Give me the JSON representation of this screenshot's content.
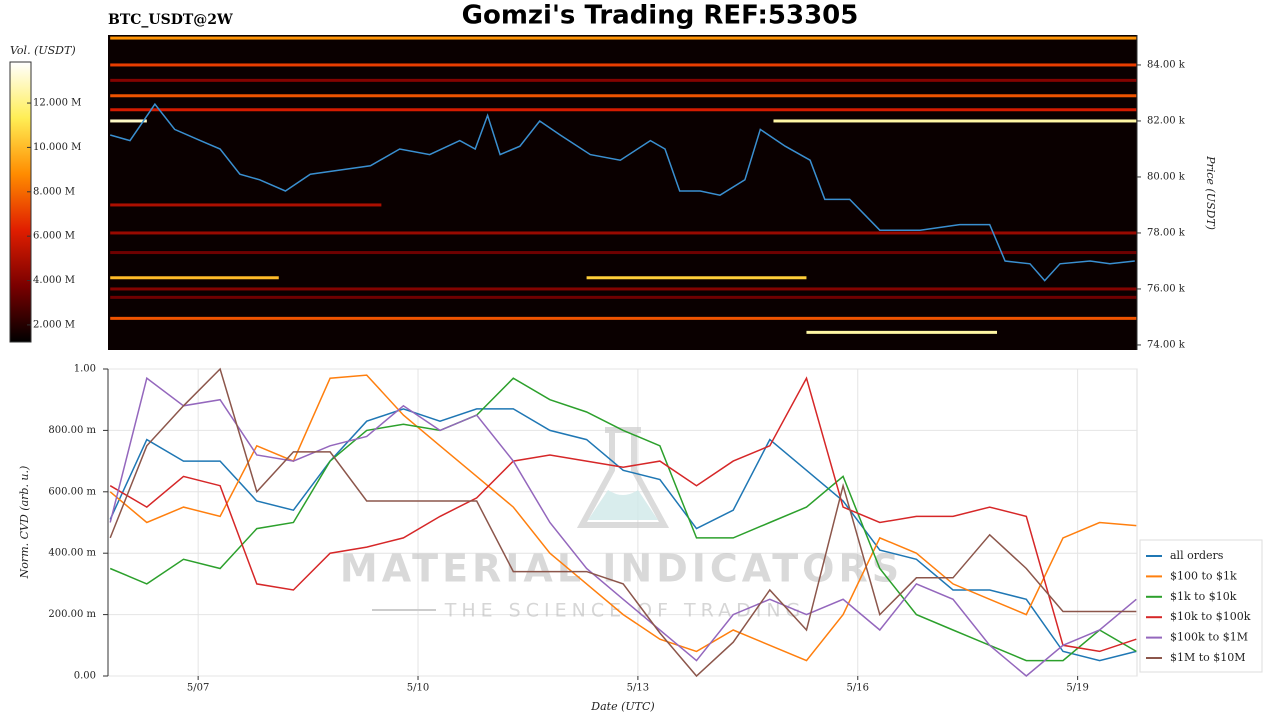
{
  "chart_data": [
    {
      "type": "heatmap",
      "title": "Gomzi's Trading REF:53305",
      "subtitle": "BTC_USDT@2W",
      "colorbar_label": "Vol. (USDT)",
      "ylabel": "Price (USDT)",
      "xlim": [
        5.77,
        19.81
      ],
      "ylim": [
        73820,
        85070
      ],
      "yticks": [
        {
          "value": 74000,
          "label": "74.00 k"
        },
        {
          "value": 76000,
          "label": "76.00 k"
        },
        {
          "value": 78000,
          "label": "78.00 k"
        },
        {
          "value": 80000,
          "label": "80.00 k"
        },
        {
          "value": 82000,
          "label": "82.00 k"
        },
        {
          "value": 84000,
          "label": "84.00 k"
        }
      ],
      "vlim": [
        1230000,
        13850000
      ],
      "vticks": [
        {
          "value": 2000000,
          "label": "2.000 M"
        },
        {
          "value": 4000000,
          "label": "4.000 M"
        },
        {
          "value": 6000000,
          "label": "6.000 M"
        },
        {
          "value": 8000000,
          "label": "8.000 M"
        },
        {
          "value": 10000000,
          "label": "10.000 M"
        },
        {
          "value": 12000000,
          "label": "12.000 M"
        }
      ],
      "colormap": [
        "#000000",
        "#7a0000",
        "#e01e00",
        "#ff8c00",
        "#ffee55",
        "#ffffff"
      ],
      "background": "#0a0000",
      "color": "#3a8fd0",
      "x": [
        5.8,
        6.07,
        6.41,
        6.68,
        7.03,
        7.3,
        7.57,
        7.84,
        8.19,
        8.53,
        8.94,
        9.35,
        9.75,
        10.16,
        10.57,
        10.78,
        10.95,
        11.12,
        11.39,
        11.66,
        11.94,
        12.35,
        12.76,
        13.17,
        13.37,
        13.57,
        13.85,
        14.12,
        14.46,
        14.67,
        15.01,
        15.35,
        15.55,
        15.89,
        16.3,
        16.85,
        17.39,
        17.8,
        18.01,
        18.35,
        18.55,
        18.76,
        19.17,
        19.44,
        19.78
      ],
      "values": [
        81500,
        81300,
        82600,
        81700,
        81300,
        81000,
        80100,
        79900,
        79500,
        80100,
        80250,
        80400,
        81000,
        80800,
        81300,
        81000,
        82200,
        80800,
        81100,
        82000,
        81500,
        80800,
        80600,
        81300,
        81000,
        79500,
        79500,
        79350,
        79900,
        81700,
        81100,
        80600,
        79200,
        79200,
        78100,
        78100,
        78300,
        78300,
        77000,
        76900,
        76300,
        76900,
        77000,
        76900,
        77000
      ],
      "levels": [
        {
          "price": 84960,
          "start": 5.8,
          "end": 19.8,
          "volume": 9000000
        },
        {
          "price": 84000,
          "start": 5.8,
          "end": 19.8,
          "volume": 7000000
        },
        {
          "price": 83450,
          "start": 5.8,
          "end": 19.8,
          "volume": 4000000
        },
        {
          "price": 82900,
          "start": 5.8,
          "end": 19.8,
          "volume": 7500000
        },
        {
          "price": 82400,
          "start": 5.8,
          "end": 19.8,
          "volume": 6000000
        },
        {
          "price": 82000,
          "start": 14.85,
          "end": 19.8,
          "volume": 12500000
        },
        {
          "price": 82000,
          "start": 5.8,
          "end": 6.3,
          "volume": 13000000
        },
        {
          "price": 79000,
          "start": 5.8,
          "end": 9.5,
          "volume": 5000000
        },
        {
          "price": 78000,
          "start": 5.8,
          "end": 19.8,
          "volume": 4500000
        },
        {
          "price": 77300,
          "start": 5.8,
          "end": 19.8,
          "volume": 3500000
        },
        {
          "price": 76400,
          "start": 5.8,
          "end": 8.1,
          "volume": 10000000
        },
        {
          "price": 76400,
          "start": 12.3,
          "end": 15.3,
          "volume": 10500000
        },
        {
          "price": 76000,
          "start": 5.8,
          "end": 19.8,
          "volume": 4000000
        },
        {
          "price": 75700,
          "start": 5.8,
          "end": 19.8,
          "volume": 3500000
        },
        {
          "price": 74950,
          "start": 5.8,
          "end": 19.8,
          "volume": 7500000
        },
        {
          "price": 74450,
          "start": 15.3,
          "end": 17.9,
          "volume": 12500000
        }
      ]
    },
    {
      "type": "line",
      "xlabel": "Date (UTC)",
      "ylabel": "Norm. CVD (arb. u.)",
      "grid": true,
      "legend": "right",
      "watermark": {
        "title": "MATERIAL INDICATORS",
        "subtitle": "THE SCIENCE OF TRADING"
      },
      "xlim": [
        5.77,
        19.81
      ],
      "ylim": [
        0,
        1
      ],
      "xticks": [
        {
          "value": 7,
          "label": "5/07"
        },
        {
          "value": 10,
          "label": "5/10"
        },
        {
          "value": 13,
          "label": "5/13"
        },
        {
          "value": 16,
          "label": "5/16"
        },
        {
          "value": 19,
          "label": "5/19"
        }
      ],
      "yticks": [
        {
          "value": 0,
          "label": "0.00"
        },
        {
          "value": 0.2,
          "label": "200.00 m"
        },
        {
          "value": 0.4,
          "label": "400.00 m"
        },
        {
          "value": 0.6,
          "label": "600.00 m"
        },
        {
          "value": 0.8,
          "label": "800.00 m"
        },
        {
          "value": 1,
          "label": "1.00"
        }
      ],
      "x": [
        5.8,
        6.3,
        6.8,
        7.3,
        7.8,
        8.3,
        8.8,
        9.3,
        9.8,
        10.3,
        10.8,
        11.3,
        11.8,
        12.3,
        12.8,
        13.3,
        13.8,
        14.3,
        14.8,
        15.3,
        15.8,
        16.3,
        16.8,
        17.3,
        17.8,
        18.3,
        18.8,
        19.3,
        19.8
      ],
      "series": [
        {
          "name": "all orders",
          "color": "#1f77b4",
          "values": [
            0.51,
            0.77,
            0.7,
            0.7,
            0.57,
            0.54,
            0.7,
            0.83,
            0.87,
            0.83,
            0.87,
            0.87,
            0.8,
            0.77,
            0.67,
            0.64,
            0.48,
            0.54,
            0.77,
            0.67,
            0.57,
            0.41,
            0.38,
            0.28,
            0.28,
            0.25,
            0.08,
            0.05,
            0.08
          ]
        },
        {
          "name": "$100 to $1k",
          "color": "#ff7f0e",
          "values": [
            0.6,
            0.5,
            0.55,
            0.52,
            0.75,
            0.7,
            0.97,
            0.98,
            0.85,
            0.75,
            0.65,
            0.55,
            0.4,
            0.3,
            0.2,
            0.12,
            0.08,
            0.15,
            0.1,
            0.05,
            0.2,
            0.45,
            0.4,
            0.3,
            0.25,
            0.2,
            0.45,
            0.5,
            0.49
          ]
        },
        {
          "name": "$1k to $10k",
          "color": "#2ca02c",
          "values": [
            0.35,
            0.3,
            0.38,
            0.35,
            0.48,
            0.5,
            0.7,
            0.8,
            0.82,
            0.8,
            0.85,
            0.97,
            0.9,
            0.86,
            0.8,
            0.75,
            0.45,
            0.45,
            0.5,
            0.55,
            0.65,
            0.35,
            0.2,
            0.15,
            0.1,
            0.05,
            0.05,
            0.15,
            0.08
          ]
        },
        {
          "name": "$10k to $100k",
          "color": "#d62728",
          "values": [
            0.62,
            0.55,
            0.65,
            0.62,
            0.3,
            0.28,
            0.4,
            0.42,
            0.45,
            0.52,
            0.58,
            0.7,
            0.72,
            0.7,
            0.68,
            0.7,
            0.62,
            0.7,
            0.75,
            0.97,
            0.55,
            0.5,
            0.52,
            0.52,
            0.55,
            0.52,
            0.1,
            0.08,
            0.12
          ]
        },
        {
          "name": "$100k to $1M",
          "color": "#9467bd",
          "values": [
            0.5,
            0.97,
            0.88,
            0.9,
            0.72,
            0.7,
            0.75,
            0.78,
            0.88,
            0.8,
            0.85,
            0.7,
            0.5,
            0.35,
            0.25,
            0.15,
            0.05,
            0.2,
            0.25,
            0.2,
            0.25,
            0.15,
            0.3,
            0.25,
            0.1,
            0.0,
            0.1,
            0.15,
            0.25
          ]
        },
        {
          "name": "$1M to $10M",
          "color": "#8c564b",
          "values": [
            0.45,
            0.75,
            0.88,
            1.0,
            0.6,
            0.73,
            0.73,
            0.57,
            0.57,
            0.57,
            0.57,
            0.34,
            0.34,
            0.34,
            0.3,
            0.14,
            0.0,
            0.11,
            0.28,
            0.15,
            0.62,
            0.2,
            0.32,
            0.32,
            0.46,
            0.35,
            0.21,
            0.21,
            0.21
          ]
        }
      ]
    }
  ]
}
